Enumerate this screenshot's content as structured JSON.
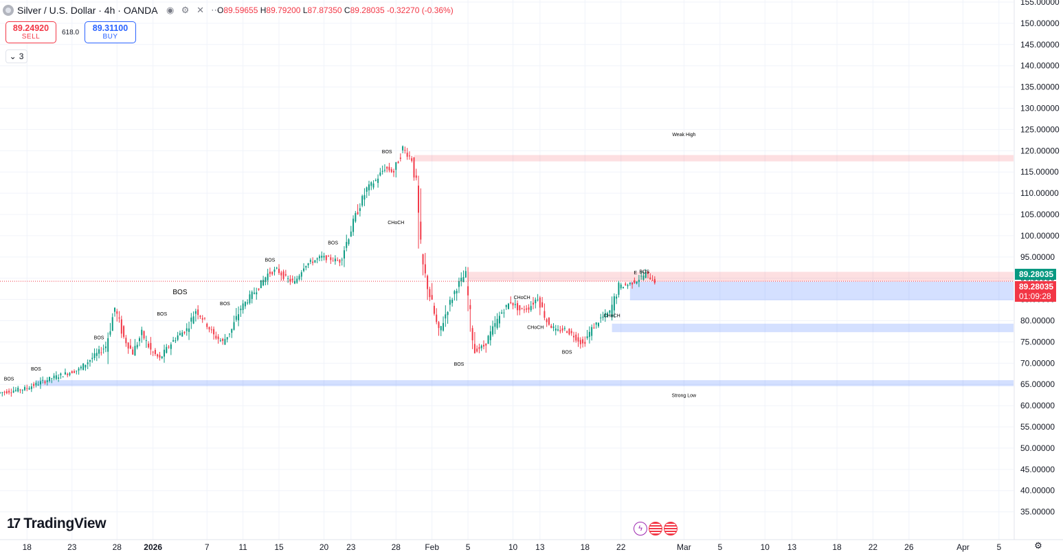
{
  "header": {
    "title": "Silver / U.S. Dollar · 4h · OANDA",
    "ohlc": {
      "o_label": "O",
      "o": "89.59655",
      "h_label": "H",
      "h": "89.79200",
      "l_label": "L",
      "l": "87.87350",
      "c_label": "C",
      "c": "89.28035",
      "change": "-0.32270 (-0.36%)"
    }
  },
  "trade": {
    "sell_price": "89.24920",
    "sell_label": "SELL",
    "spread": "618.0",
    "buy_price": "89.31100",
    "buy_label": "BUY"
  },
  "indicators_toggle": {
    "count": "3"
  },
  "brand": "TradingView",
  "price_labels": {
    "last": "89.28035",
    "bid": "89.28035",
    "countdown": "01:09:28"
  },
  "colors": {
    "up": "#089981",
    "down": "#f23645",
    "demand_zone": "#2962ff",
    "supply_zone": "#f23645"
  },
  "chart_data": {
    "type": "candlestick",
    "title": "Silver / U.S. Dollar · 4h · OANDA",
    "y_axis": {
      "min": 33,
      "max": 155,
      "position": "right",
      "ticks": [
        {
          "v": 155,
          "label": "155.00000"
        },
        {
          "v": 150,
          "label": "150.00000"
        },
        {
          "v": 145,
          "label": "145.00000"
        },
        {
          "v": 140,
          "label": "140.00000"
        },
        {
          "v": 135,
          "label": "135.00000"
        },
        {
          "v": 130,
          "label": "130.00000"
        },
        {
          "v": 125,
          "label": "125.00000"
        },
        {
          "v": 120,
          "label": "120.00000"
        },
        {
          "v": 115,
          "label": "115.00000"
        },
        {
          "v": 110,
          "label": "110.00000"
        },
        {
          "v": 105,
          "label": "105.00000"
        },
        {
          "v": 100,
          "label": "100.00000"
        },
        {
          "v": 95,
          "label": "95.00000"
        },
        {
          "v": 90,
          "label": "90.00000"
        },
        {
          "v": 85,
          "label": "85.00000"
        },
        {
          "v": 80,
          "label": "80.00000"
        },
        {
          "v": 75,
          "label": "75.00000"
        },
        {
          "v": 70,
          "label": "70.00000"
        },
        {
          "v": 65,
          "label": "65.00000"
        },
        {
          "v": 60,
          "label": "60.00000"
        },
        {
          "v": 55,
          "label": "55.00000"
        },
        {
          "v": 50,
          "label": "50.00000"
        },
        {
          "v": 45,
          "label": "45.00000"
        },
        {
          "v": 40,
          "label": "40.00000"
        },
        {
          "v": 35,
          "label": "35.00000"
        }
      ]
    },
    "x_axis": {
      "day_min": -3,
      "day_max": 110,
      "ticks": [
        {
          "d": 0,
          "label": "18"
        },
        {
          "d": 5,
          "label": "23"
        },
        {
          "d": 10,
          "label": "28"
        },
        {
          "d": 14,
          "label": "2026",
          "bold": true
        },
        {
          "d": 20,
          "label": "7"
        },
        {
          "d": 24,
          "label": "11"
        },
        {
          "d": 28,
          "label": "15"
        },
        {
          "d": 33,
          "label": "20"
        },
        {
          "d": 36,
          "label": "23"
        },
        {
          "d": 41,
          "label": "28"
        },
        {
          "d": 45,
          "label": "Feb"
        },
        {
          "d": 49,
          "label": "5"
        },
        {
          "d": 54,
          "label": "10"
        },
        {
          "d": 57,
          "label": "13"
        },
        {
          "d": 62,
          "label": "18"
        },
        {
          "d": 66,
          "label": "22"
        },
        {
          "d": 73,
          "label": "Mar"
        },
        {
          "d": 77,
          "label": "5"
        },
        {
          "d": 82,
          "label": "10"
        },
        {
          "d": 85,
          "label": "13"
        },
        {
          "d": 90,
          "label": "18"
        },
        {
          "d": 94,
          "label": "22"
        },
        {
          "d": 98,
          "label": "26"
        },
        {
          "d": 104,
          "label": "Apr"
        },
        {
          "d": 108,
          "label": "5"
        }
      ]
    },
    "last_price": 89.28035,
    "path": [
      [
        -3,
        63
      ],
      [
        0,
        64
      ],
      [
        3,
        66.5
      ],
      [
        6,
        68.5
      ],
      [
        9,
        74
      ],
      [
        10,
        83
      ],
      [
        11,
        76
      ],
      [
        12,
        72.5
      ],
      [
        13,
        77
      ],
      [
        14,
        73
      ],
      [
        15,
        71
      ],
      [
        16,
        74
      ],
      [
        17,
        76.5
      ],
      [
        18,
        78
      ],
      [
        19,
        82.5
      ],
      [
        20,
        80
      ],
      [
        21,
        76.5
      ],
      [
        22,
        75
      ],
      [
        23,
        78
      ],
      [
        24,
        83
      ],
      [
        25,
        85.5
      ],
      [
        26,
        88
      ],
      [
        27,
        91
      ],
      [
        28,
        92
      ],
      [
        29,
        90
      ],
      [
        30,
        89
      ],
      [
        31,
        93
      ],
      [
        32,
        94
      ],
      [
        33,
        95
      ],
      [
        34,
        94.5
      ],
      [
        35,
        94
      ],
      [
        36,
        100
      ],
      [
        37,
        106
      ],
      [
        38,
        111
      ],
      [
        39,
        113
      ],
      [
        40,
        116
      ],
      [
        41,
        115
      ],
      [
        42,
        120.5
      ],
      [
        43,
        118
      ],
      [
        43.5,
        112
      ],
      [
        44,
        95
      ],
      [
        45,
        86
      ],
      [
        46,
        77
      ],
      [
        47,
        83
      ],
      [
        48,
        88
      ],
      [
        49,
        91
      ],
      [
        49.5,
        80
      ],
      [
        50,
        73
      ],
      [
        51,
        74
      ],
      [
        52,
        78
      ],
      [
        53,
        82
      ],
      [
        54,
        84.5
      ],
      [
        55,
        82.5
      ],
      [
        56,
        83
      ],
      [
        57,
        85.5
      ],
      [
        58,
        80
      ],
      [
        59,
        77.5
      ],
      [
        60,
        78
      ],
      [
        61,
        76.5
      ],
      [
        62,
        74.5
      ],
      [
        63,
        78
      ],
      [
        64,
        80.5
      ],
      [
        65,
        82
      ],
      [
        66,
        88
      ],
      [
        67,
        88.5
      ],
      [
        68,
        89.5
      ],
      [
        69,
        91
      ],
      [
        70,
        89.3
      ]
    ],
    "zones": [
      {
        "type": "supply",
        "from_day": 43,
        "to_day": 110,
        "low": 117.5,
        "high": 119
      },
      {
        "type": "supply",
        "from_day": 49,
        "to_day": 110,
        "low": 89.3,
        "high": 91.5
      },
      {
        "type": "demand",
        "from_day": 67,
        "to_day": 110,
        "low": 84.8,
        "high": 89.2
      },
      {
        "type": "demand",
        "from_day": 65,
        "to_day": 110,
        "low": 77.3,
        "high": 79.3
      },
      {
        "type": "demand",
        "from_day": 1,
        "to_day": 110,
        "low": 64.6,
        "high": 66
      }
    ],
    "structure_lines": [
      {
        "from_day": 43,
        "to_day": 73,
        "price": 121.5,
        "color": "down",
        "style": "solid",
        "label": "Weak High",
        "label_day": 73,
        "label_dy": -12
      },
      {
        "from_day": 50,
        "to_day": 73,
        "price": 64,
        "color": "up",
        "style": "solid",
        "label": "Strong Low",
        "label_day": 73,
        "label_dy": 12
      },
      {
        "from_day": 10,
        "to_day": 24,
        "price": 84,
        "color": "up",
        "style": "solid",
        "label": "BOS",
        "label_day": 17,
        "label_dy": -14,
        "big": true
      },
      {
        "from_day": 20,
        "to_day": 24,
        "price": 82.5,
        "color": "up",
        "style": "dashed",
        "label": "BOS",
        "label_day": 22,
        "label_dy": -7
      },
      {
        "from_day": 13,
        "to_day": 19,
        "price": 78,
        "color": "up",
        "style": "dashed",
        "label": "BOS",
        "label_day": 15,
        "label_dy": -20
      },
      {
        "from_day": 0,
        "to_day": 3,
        "price": 66,
        "color": "up",
        "style": "dashed",
        "label": "BOS",
        "label_day": 1,
        "label_dy": -14
      },
      {
        "from_day": -3,
        "to_day": 0,
        "price": 64,
        "color": "up",
        "style": "dashed",
        "label": "BOS",
        "label_day": -2,
        "label_dy": -12
      },
      {
        "from_day": 8,
        "to_day": 10,
        "price": 75,
        "color": "up",
        "style": "dashed",
        "label": "BOS",
        "label_day": 8,
        "label_dy": -4
      },
      {
        "from_day": 27,
        "to_day": 31,
        "price": 92,
        "color": "up",
        "style": "dashed",
        "label": "BOS",
        "label_day": 27,
        "label_dy": -12
      },
      {
        "from_day": 32,
        "to_day": 36,
        "price": 96,
        "color": "up",
        "style": "dashed",
        "label": "BOS",
        "label_day": 34,
        "label_dy": -12
      },
      {
        "from_day": 39,
        "to_day": 42,
        "price": 117.5,
        "color": "up",
        "style": "dashed",
        "label": "BOS",
        "label_day": 40,
        "label_dy": -12
      },
      {
        "from_day": 39,
        "to_day": 43,
        "price": 104.5,
        "color": "down",
        "style": "dashed",
        "label": "CHoCH",
        "label_day": 41,
        "label_dy": 11
      },
      {
        "from_day": 46,
        "to_day": 50,
        "price": 71.5,
        "color": "down",
        "style": "dashed",
        "label": "BOS",
        "label_day": 48,
        "label_dy": 13
      },
      {
        "from_day": 53,
        "to_day": 57,
        "price": 84,
        "color": "up",
        "style": "dashed",
        "label": "CHoCH",
        "label_day": 55,
        "label_dy": -7
      },
      {
        "from_day": 55,
        "to_day": 58,
        "price": 80,
        "color": "down",
        "style": "dashed",
        "label": "CHoCH",
        "label_day": 56.5,
        "label_dy": 12
      },
      {
        "from_day": 59,
        "to_day": 62,
        "price": 74,
        "color": "down",
        "style": "dashed",
        "label": "BOS",
        "label_day": 60,
        "label_dy": 11
      },
      {
        "from_day": 63,
        "to_day": 66,
        "price": 79.5,
        "color": "up",
        "style": "dashed",
        "label": "CHoCH",
        "label_day": 65,
        "label_dy": -8
      },
      {
        "from_day": 68,
        "to_day": 70,
        "price": 90,
        "color": "up",
        "style": "dashed",
        "label": "BOS",
        "label_day": 68.6,
        "label_dy": -7
      },
      {
        "from_day": 67.5,
        "to_day": 68.5,
        "price": 89.8,
        "color": "down",
        "style": "dashed",
        "label": "E",
        "label_day": 67.6,
        "label_dy": -7
      }
    ]
  }
}
